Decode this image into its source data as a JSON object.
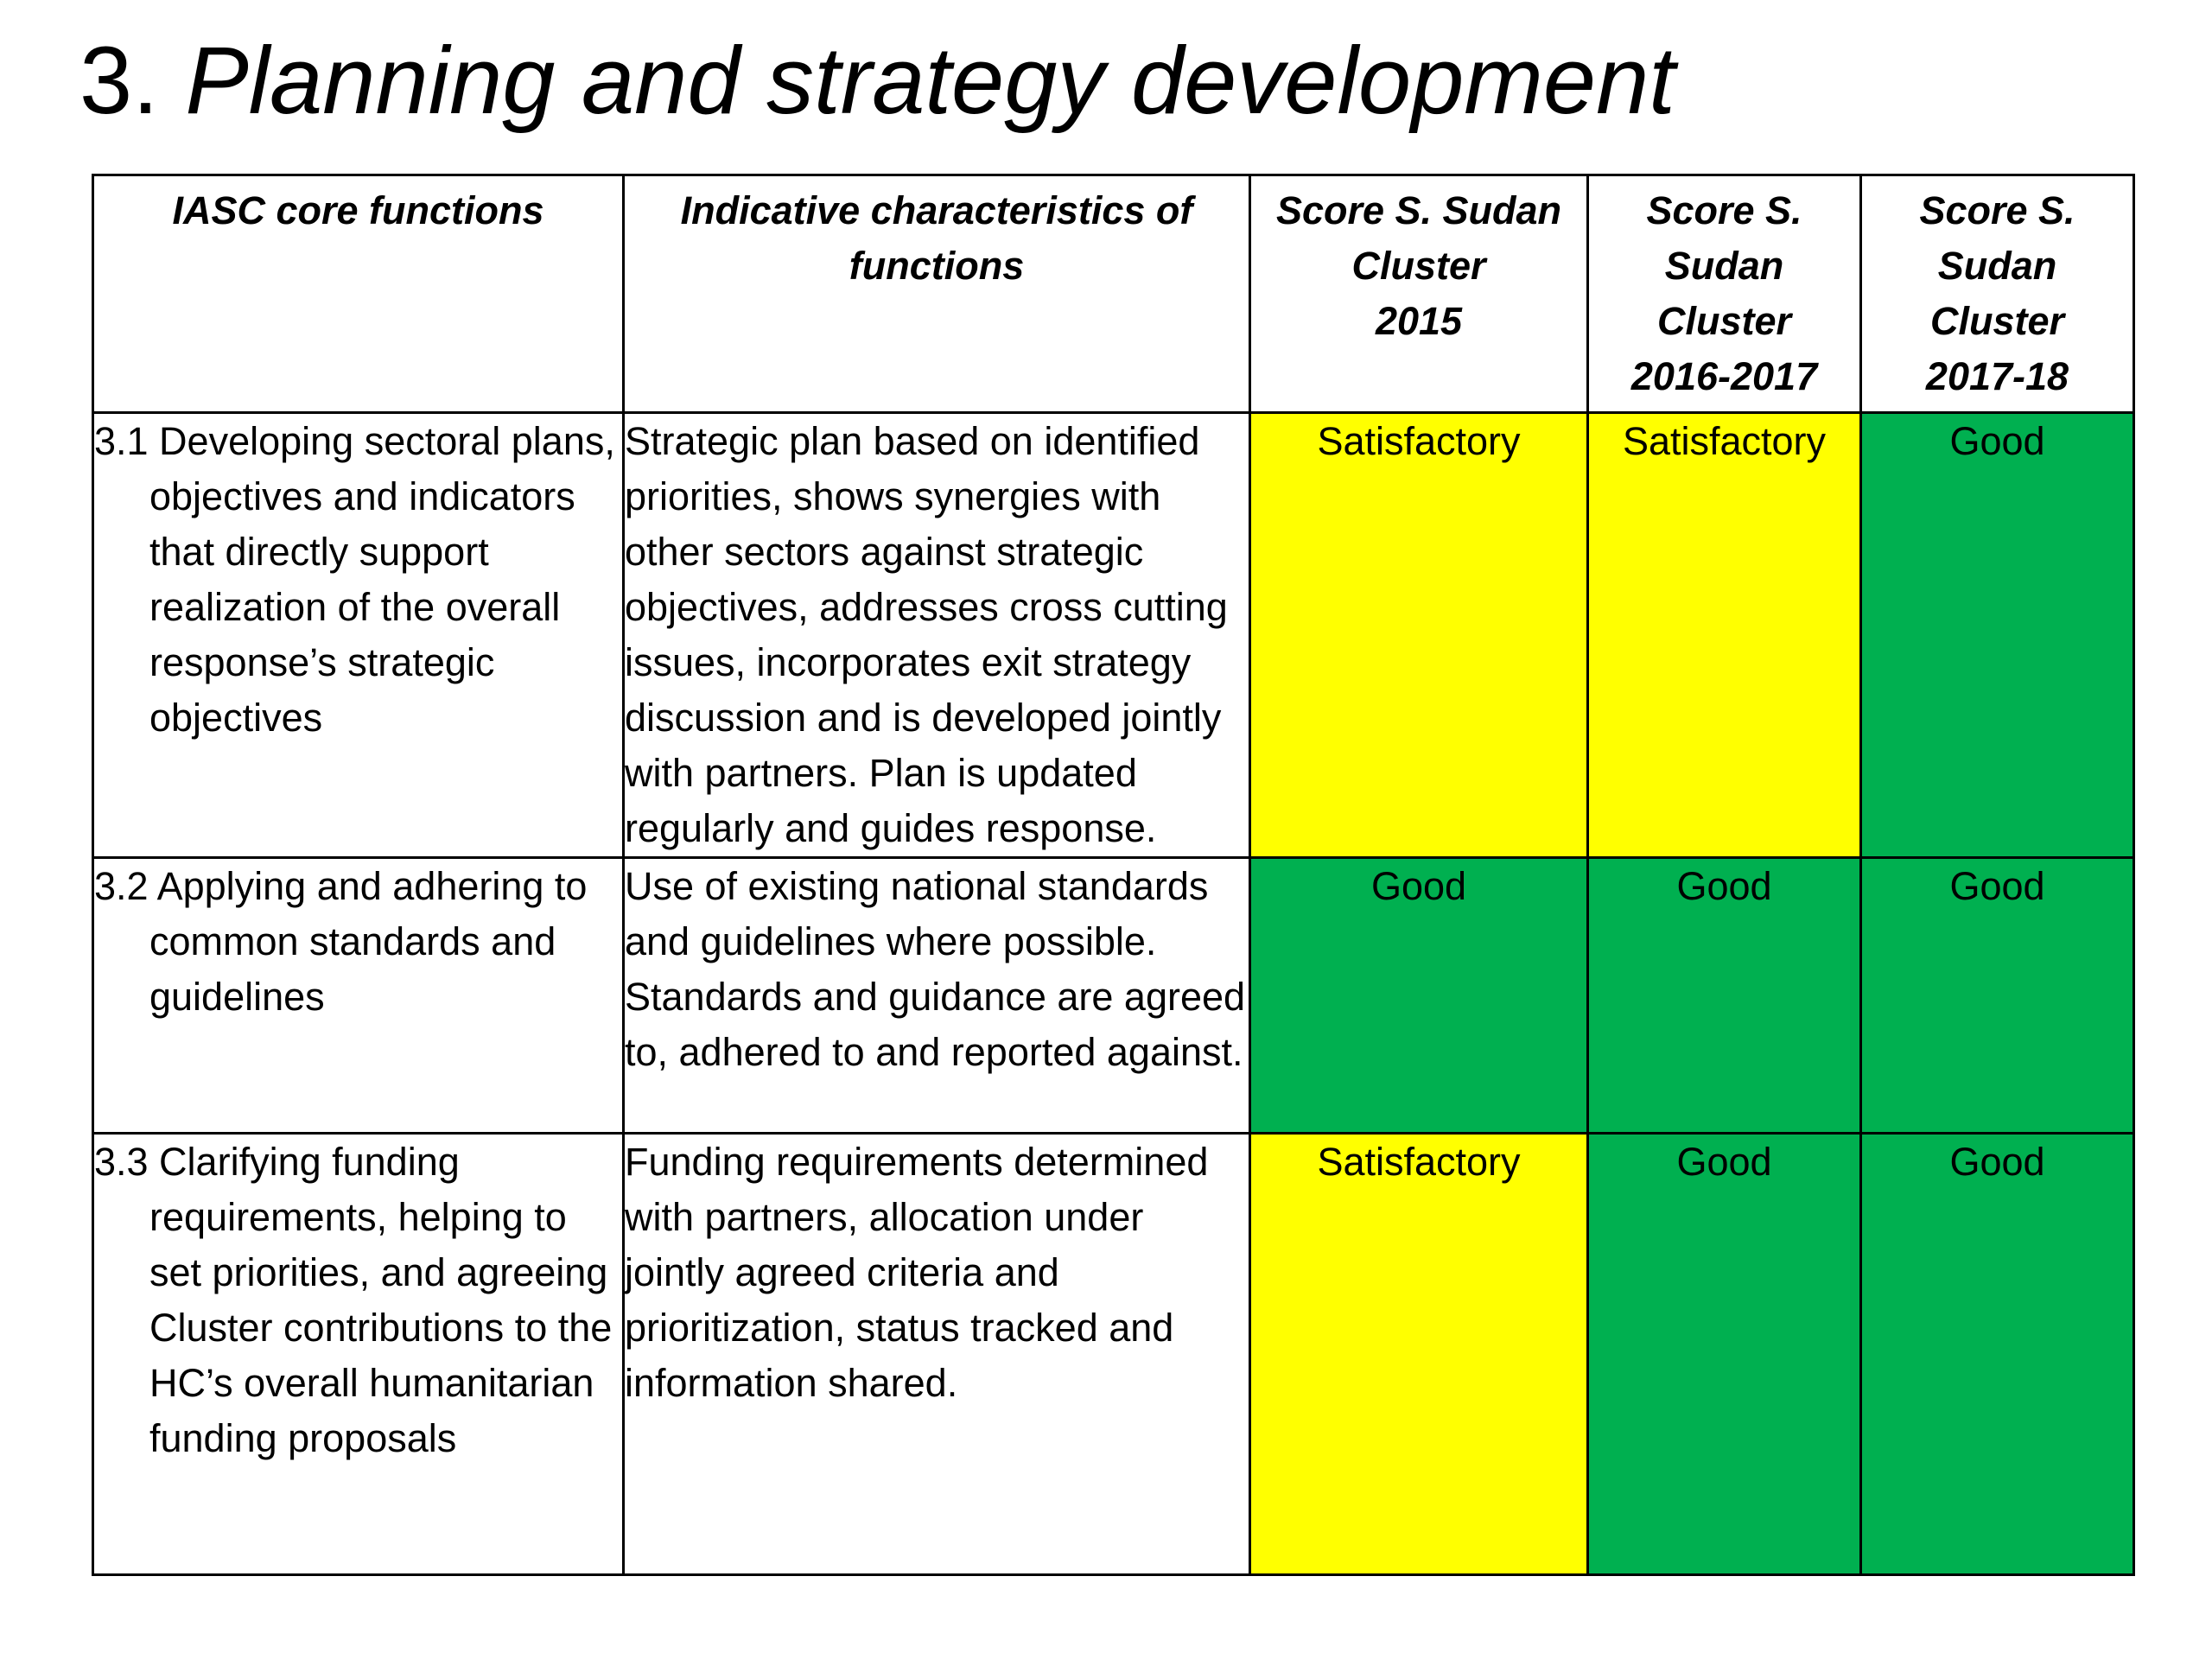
{
  "title": {
    "number": "3.",
    "text": "Planning and strategy development"
  },
  "table": {
    "headers": [
      [
        "IASC core functions"
      ],
      [
        "Indicative characteristics of",
        "functions"
      ],
      [
        "Score S. Sudan",
        "Cluster",
        "2015"
      ],
      [
        "Score S. Sudan",
        "Cluster",
        "2016-2017"
      ],
      [
        "Score S. Sudan",
        "Cluster",
        "2017-18"
      ]
    ],
    "rows": [
      {
        "function": "3.1 Developing sectoral plans, objectives and indicators that directly support realization of the overall response’s strategic objectives",
        "characteristics": "Strategic plan based on identified priorities, shows synergies with other sectors against strategic objectives, addresses cross cutting issues, incorporates exit strategy discussion and is developed jointly with partners. Plan is updated regularly and guides response.",
        "scores": [
          "Satisfactory",
          "Satisfactory",
          "Good"
        ]
      },
      {
        "function": "3.2 Applying and adhering to common standards and guidelines",
        "characteristics": "Use of existing national standards and guidelines where possible. Standards and guidance are agreed to, adhered to and reported against.",
        "scores": [
          "Good",
          "Good",
          "Good"
        ]
      },
      {
        "function": "3.3 Clarifying funding requirements, helping to set priorities, and agreeing Cluster contributions to the HC’s overall humanitarian funding proposals",
        "characteristics": "Funding requirements determined with partners, allocation under jointly agreed criteria and prioritization, status tracked and information shared.",
        "scores": [
          "Satisfactory",
          "Good",
          "Good"
        ]
      }
    ]
  },
  "colors": {
    "satisfactory": "#ffff00",
    "good": "#00b050",
    "border": "#000000"
  }
}
